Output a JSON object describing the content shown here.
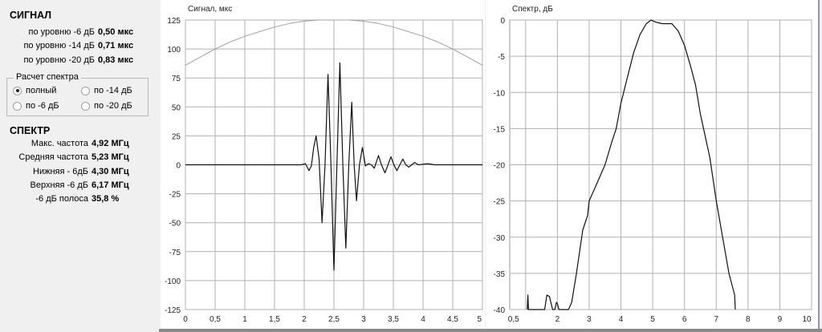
{
  "left": {
    "signal_title": "СИГНАЛ",
    "signal_rows": [
      {
        "label": "по уровню -6 дБ",
        "value": "0,50 мкс"
      },
      {
        "label": "по уровню -14  дБ",
        "value": "0,71 мкс"
      },
      {
        "label": "по уровню -20  дБ",
        "value": "0,83 мкс"
      }
    ],
    "group": {
      "title": "Расчет спектра",
      "options": [
        {
          "label": "полный",
          "checked": true
        },
        {
          "label": "по -14 дБ",
          "checked": false
        },
        {
          "label": "по -6 дБ",
          "checked": false
        },
        {
          "label": "по -20 дБ",
          "checked": false
        }
      ]
    },
    "spectrum_title": "СПЕКТР",
    "spectrum_rows": [
      {
        "label": "Макс. частота",
        "value": "4,92 МГц"
      },
      {
        "label": "Средняя частота",
        "value": "5,23 МГц"
      },
      {
        "label": "Нижняя - 6дБ",
        "value": "4,30 МГц"
      },
      {
        "label": "Верхняя -6 дБ",
        "value": "6,17 МГц"
      },
      {
        "label": "-6 дБ полоса",
        "value": "35,8 %"
      }
    ]
  },
  "chart_data": [
    {
      "type": "line",
      "title": "Сигнал, мкс",
      "xlim": [
        0,
        5
      ],
      "ylim": [
        -125,
        125
      ],
      "grid": true,
      "xticks": [
        "0",
        "0,5",
        "1",
        "1,5",
        "2",
        "2,5",
        "3",
        "3,5",
        "4",
        "4,5",
        "5"
      ],
      "yticks": [
        "125",
        "100",
        "75",
        "50",
        "25",
        "0",
        "-25",
        "-50",
        "-75",
        "-100",
        "-125"
      ],
      "series": [
        {
          "color": "#a0a0a0",
          "x": [
            0,
            0.25,
            0.5,
            0.75,
            1,
            1.25,
            1.5,
            1.75,
            2,
            2.25,
            2.5,
            2.75,
            3,
            3.25,
            3.5,
            3.75,
            4,
            4.25,
            4.5,
            4.75,
            5
          ],
          "y": [
            86,
            93,
            100,
            106,
            111,
            115,
            119,
            122,
            124,
            125,
            125,
            125,
            124,
            122,
            119,
            115,
            111,
            106,
            100,
            93,
            86
          ]
        },
        {
          "color": "#111111",
          "x": [
            0,
            1.95,
            2.02,
            2.08,
            2.12,
            2.16,
            2.2,
            2.25,
            2.3,
            2.35,
            2.4,
            2.45,
            2.5,
            2.55,
            2.6,
            2.65,
            2.7,
            2.75,
            2.8,
            2.84,
            2.88,
            2.93,
            2.98,
            3.03,
            3.08,
            3.13,
            3.18,
            3.25,
            3.3,
            3.36,
            3.41,
            3.46,
            3.51,
            3.56,
            3.61,
            3.66,
            3.71,
            3.76,
            3.81,
            3.86,
            3.92,
            4.0,
            4.08,
            4.2,
            5
          ],
          "y": [
            0,
            0,
            1,
            -5,
            -1,
            15,
            25,
            5,
            -50,
            0,
            78,
            0,
            -91,
            0,
            88,
            0,
            -72,
            0,
            54,
            0,
            -31,
            0,
            15,
            -1,
            1,
            0,
            -3,
            8,
            0,
            -7,
            0,
            7,
            0,
            -5,
            0,
            5,
            0,
            -2,
            0,
            2,
            0,
            0.5,
            1,
            0,
            0
          ]
        }
      ]
    },
    {
      "type": "line",
      "title": "Спектр, дБ",
      "xlim": [
        0.5,
        10
      ],
      "ylim": [
        -40,
        0
      ],
      "grid": true,
      "xticks": [
        "0,5",
        "2",
        "3",
        "4",
        "5",
        "6",
        "7",
        "8",
        "9",
        "10"
      ],
      "yticks": [
        "0",
        "-5",
        "-10",
        "-15",
        "-20",
        "-25",
        "-30",
        "-35",
        "-40"
      ],
      "series": [
        {
          "color": "#111111",
          "x": [
            1.05,
            1.07,
            1.09,
            1.12,
            1.6,
            1.67,
            1.75,
            1.85,
            1.92,
            1.97,
            2.0,
            2.05,
            2.35,
            2.45,
            2.6,
            2.8,
            2.95,
            3.0,
            3.2,
            3.5,
            3.7,
            3.85,
            4.0,
            4.2,
            4.4,
            4.6,
            4.8,
            4.95,
            5.1,
            5.3,
            5.6,
            5.8,
            6.0,
            6.2,
            6.35,
            6.5,
            6.8,
            7.0,
            7.2,
            7.4,
            7.58,
            7.6
          ],
          "y": [
            -40,
            -38,
            -40,
            -40,
            -40,
            -38,
            -38.2,
            -40,
            -40,
            -39,
            -39.2,
            -40,
            -40,
            -39,
            -35,
            -29,
            -27,
            -25,
            -23,
            -20,
            -17,
            -15,
            -11.5,
            -8,
            -4.5,
            -2,
            -0.5,
            0,
            -0.3,
            -0.5,
            -0.5,
            -1.5,
            -3.5,
            -6.5,
            -9,
            -13,
            -19,
            -25,
            -30,
            -35,
            -38,
            -40
          ]
        }
      ]
    }
  ]
}
